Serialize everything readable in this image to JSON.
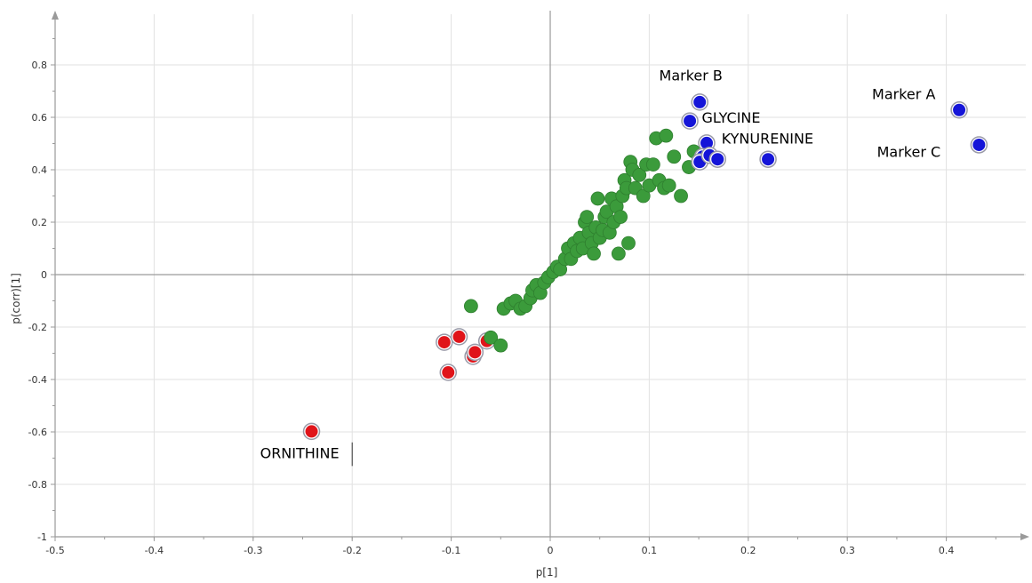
{
  "chart_data": {
    "type": "scatter",
    "title": "",
    "xlabel": "p[1]",
    "ylabel": "p(corr)[1]",
    "xlim": [
      -0.5,
      0.5
    ],
    "ylim": [
      -1,
      1
    ],
    "x_ticks": [
      -0.5,
      -0.4,
      -0.3,
      -0.2,
      -0.1,
      0,
      0.1,
      0.2,
      0.3,
      0.4
    ],
    "y_ticks": [
      -1,
      -0.8,
      -0.6,
      -0.4,
      -0.2,
      0,
      0.2,
      0.4,
      0.6,
      0.8
    ],
    "x_tick_labels": [
      "-0.5",
      "-0.4",
      "-0.3",
      "-0.2",
      "-0.1",
      "0",
      "0.1",
      "0.2",
      "0.3",
      "0.4"
    ],
    "y_tick_labels": [
      "-1",
      "-0.8",
      "-0.6",
      "-0.4",
      "-0.2",
      "0",
      "0.2",
      "0.4",
      "0.6",
      "0.8"
    ],
    "grid": true,
    "colors": {
      "red": "#e0141a",
      "green": "#3b9b3b",
      "blue": "#1515d8",
      "grid": "#e2e2e2",
      "axis": "#9a9a9a",
      "zero_line": "#9a9a9a"
    },
    "series": [
      {
        "color_key": "red",
        "points": [
          {
            "x": -0.241,
            "y": -0.598
          },
          {
            "x": -0.107,
            "y": -0.258
          },
          {
            "x": -0.103,
            "y": -0.373
          },
          {
            "x": -0.092,
            "y": -0.237
          },
          {
            "x": -0.078,
            "y": -0.312
          },
          {
            "x": -0.076,
            "y": -0.296
          },
          {
            "x": -0.064,
            "y": -0.253
          }
        ]
      },
      {
        "color_key": "green",
        "points": [
          {
            "x": -0.08,
            "y": -0.12
          },
          {
            "x": -0.06,
            "y": -0.24
          },
          {
            "x": -0.05,
            "y": -0.27
          },
          {
            "x": -0.047,
            "y": -0.13
          },
          {
            "x": -0.04,
            "y": -0.11
          },
          {
            "x": -0.035,
            "y": -0.1
          },
          {
            "x": -0.03,
            "y": -0.13
          },
          {
            "x": -0.025,
            "y": -0.12
          },
          {
            "x": -0.02,
            "y": -0.09
          },
          {
            "x": -0.018,
            "y": -0.06
          },
          {
            "x": -0.014,
            "y": -0.04
          },
          {
            "x": -0.01,
            "y": -0.07
          },
          {
            "x": -0.006,
            "y": -0.03
          },
          {
            "x": -0.002,
            "y": -0.01
          },
          {
            "x": 0.003,
            "y": 0.01
          },
          {
            "x": 0.007,
            "y": 0.03
          },
          {
            "x": 0.01,
            "y": 0.02
          },
          {
            "x": 0.015,
            "y": 0.06
          },
          {
            "x": 0.018,
            "y": 0.1
          },
          {
            "x": 0.021,
            "y": 0.06
          },
          {
            "x": 0.024,
            "y": 0.12
          },
          {
            "x": 0.027,
            "y": 0.09
          },
          {
            "x": 0.03,
            "y": 0.14
          },
          {
            "x": 0.033,
            "y": 0.1
          },
          {
            "x": 0.035,
            "y": 0.2
          },
          {
            "x": 0.037,
            "y": 0.22
          },
          {
            "x": 0.039,
            "y": 0.16
          },
          {
            "x": 0.042,
            "y": 0.12
          },
          {
            "x": 0.044,
            "y": 0.08
          },
          {
            "x": 0.046,
            "y": 0.18
          },
          {
            "x": 0.048,
            "y": 0.29
          },
          {
            "x": 0.05,
            "y": 0.14
          },
          {
            "x": 0.053,
            "y": 0.17
          },
          {
            "x": 0.055,
            "y": 0.22
          },
          {
            "x": 0.057,
            "y": 0.24
          },
          {
            "x": 0.06,
            "y": 0.16
          },
          {
            "x": 0.062,
            "y": 0.29
          },
          {
            "x": 0.064,
            "y": 0.2
          },
          {
            "x": 0.067,
            "y": 0.26
          },
          {
            "x": 0.069,
            "y": 0.08
          },
          {
            "x": 0.071,
            "y": 0.22
          },
          {
            "x": 0.073,
            "y": 0.3
          },
          {
            "x": 0.075,
            "y": 0.36
          },
          {
            "x": 0.077,
            "y": 0.33
          },
          {
            "x": 0.079,
            "y": 0.12
          },
          {
            "x": 0.081,
            "y": 0.43
          },
          {
            "x": 0.083,
            "y": 0.4
          },
          {
            "x": 0.086,
            "y": 0.33
          },
          {
            "x": 0.09,
            "y": 0.38
          },
          {
            "x": 0.094,
            "y": 0.3
          },
          {
            "x": 0.097,
            "y": 0.42
          },
          {
            "x": 0.1,
            "y": 0.34
          },
          {
            "x": 0.104,
            "y": 0.42
          },
          {
            "x": 0.107,
            "y": 0.52
          },
          {
            "x": 0.11,
            "y": 0.36
          },
          {
            "x": 0.115,
            "y": 0.33
          },
          {
            "x": 0.117,
            "y": 0.53
          },
          {
            "x": 0.12,
            "y": 0.34
          },
          {
            "x": 0.125,
            "y": 0.45
          },
          {
            "x": 0.132,
            "y": 0.3
          },
          {
            "x": 0.14,
            "y": 0.41
          },
          {
            "x": 0.145,
            "y": 0.47
          },
          {
            "x": 0.15,
            "y": 0.43
          }
        ]
      },
      {
        "color_key": "blue",
        "points": [
          {
            "x": 0.151,
            "y": 0.658
          },
          {
            "x": 0.141,
            "y": 0.586
          },
          {
            "x": 0.158,
            "y": 0.502
          },
          {
            "x": 0.154,
            "y": 0.45
          },
          {
            "x": 0.151,
            "y": 0.43
          },
          {
            "x": 0.161,
            "y": 0.455
          },
          {
            "x": 0.169,
            "y": 0.44
          },
          {
            "x": 0.22,
            "y": 0.44
          },
          {
            "x": 0.413,
            "y": 0.628
          },
          {
            "x": 0.433,
            "y": 0.495
          }
        ]
      }
    ],
    "annotations": [
      {
        "text": "Marker B",
        "x": 0.11,
        "y": 0.74
      },
      {
        "text": "GLYCINE",
        "x": 0.153,
        "y": 0.58
      },
      {
        "text": "KYNURENINE",
        "x": 0.173,
        "y": 0.5
      },
      {
        "text": "Marker A",
        "x": 0.325,
        "y": 0.67
      },
      {
        "text": "Marker C",
        "x": 0.33,
        "y": 0.45
      },
      {
        "text": "ORNITHINE",
        "x": -0.293,
        "y": -0.7
      }
    ]
  }
}
